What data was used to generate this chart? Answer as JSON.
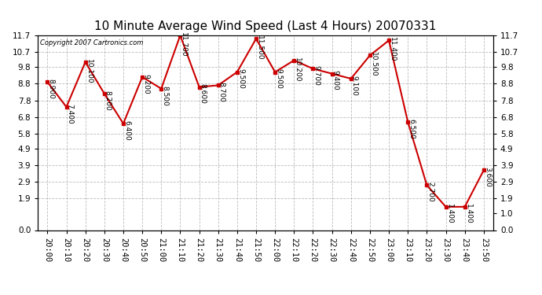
{
  "title": "10 Minute Average Wind Speed (Last 4 Hours) 20070331",
  "copyright": "Copyright 2007 Cartronics.com",
  "x_labels": [
    "20:00",
    "20:10",
    "20:20",
    "20:30",
    "20:40",
    "20:50",
    "21:00",
    "21:10",
    "21:20",
    "21:30",
    "21:40",
    "21:50",
    "22:00",
    "22:10",
    "22:20",
    "22:30",
    "22:40",
    "22:50",
    "23:00",
    "23:10",
    "23:20",
    "23:30",
    "23:40",
    "23:50"
  ],
  "y_values": [
    8.9,
    7.4,
    10.1,
    8.2,
    6.4,
    9.2,
    8.5,
    11.7,
    8.6,
    8.7,
    9.5,
    11.5,
    9.5,
    10.2,
    9.7,
    9.4,
    9.1,
    10.5,
    11.4,
    6.5,
    2.7,
    1.4,
    1.4,
    3.6
  ],
  "data_labels": [
    "8.900",
    "7.400",
    "10.100",
    "8.200",
    "6.400",
    "9.200",
    "8.500",
    "11.700",
    "8.600",
    "8.700",
    "9.500",
    "11.500",
    "9.500",
    "10.200",
    "9.700",
    "9.400",
    "9.100",
    "10.500",
    "11.400",
    "6.500",
    "2.700",
    "1.400",
    "1.400",
    "3.600"
  ],
  "line_color": "#cc0000",
  "marker_color": "#cc0000",
  "bg_color": "#ffffff",
  "plot_bg_color": "#ffffff",
  "grid_color": "#aaaaaa",
  "ylim": [
    0.0,
    11.7
  ],
  "yticks_left": [
    0.0,
    1.9,
    2.9,
    3.9,
    4.9,
    5.8,
    6.8,
    7.8,
    8.8,
    9.8,
    10.7,
    11.7
  ],
  "yticks_right": [
    0.0,
    1.0,
    1.9,
    2.9,
    3.9,
    4.9,
    5.8,
    6.8,
    7.8,
    8.8,
    9.8,
    10.7,
    11.7
  ],
  "title_fontsize": 11,
  "label_fontsize": 6.5,
  "tick_fontsize": 7.5
}
